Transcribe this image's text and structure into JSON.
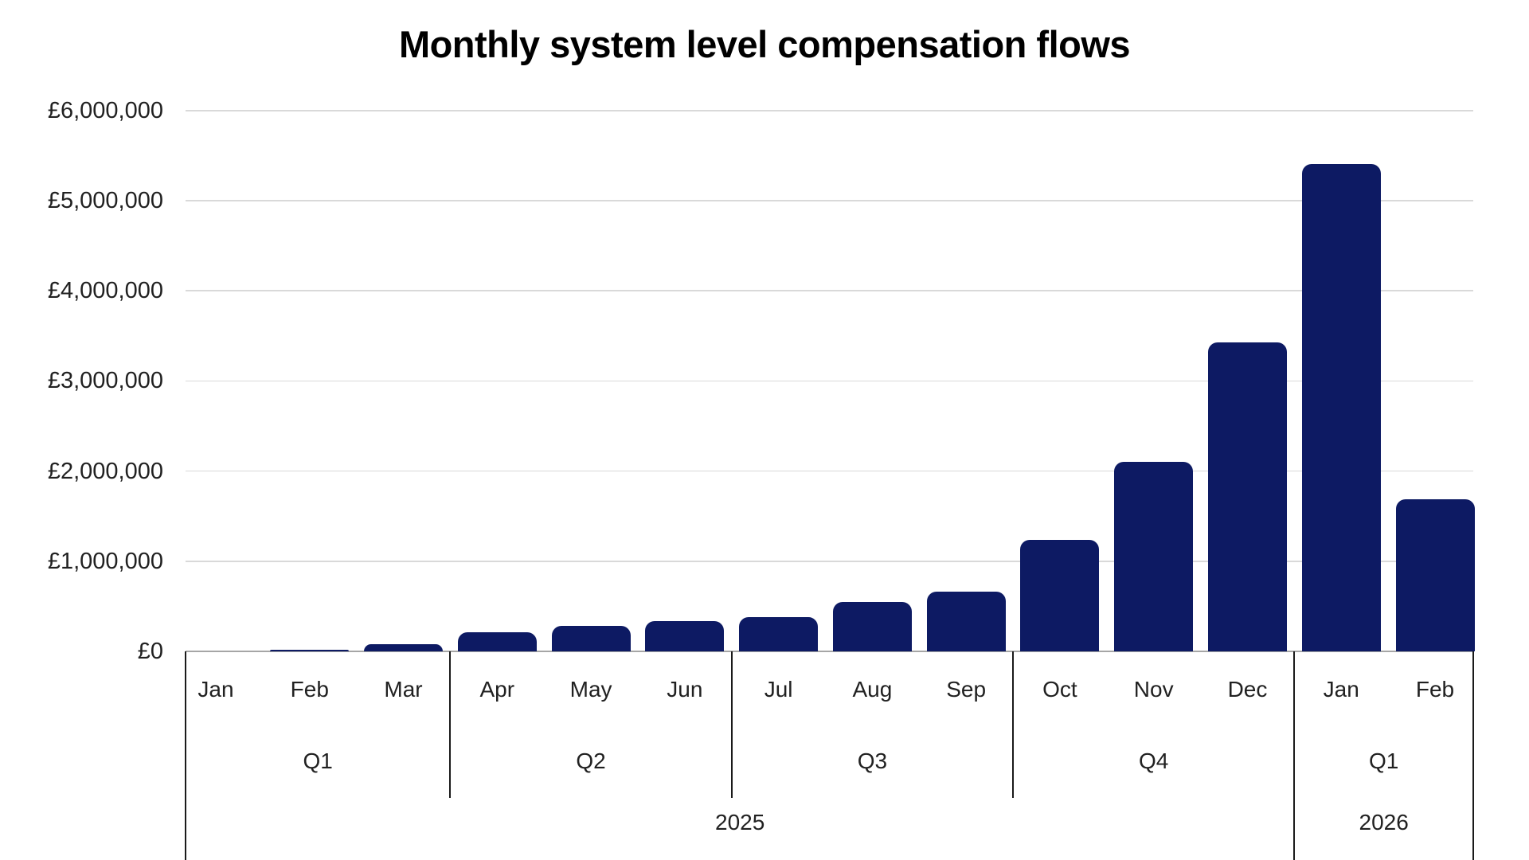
{
  "title": "Monthly system level compensation flows",
  "colors": {
    "bar": "#0d1a63",
    "gridline": "#d9d9d9",
    "axis_line": "#a6a6a6",
    "separator": "#1a1a1a",
    "label_text": "#212121",
    "title_text": "#000000",
    "background": "#ffffff"
  },
  "chart_data": {
    "type": "bar",
    "title": "Monthly system level compensation flows",
    "currency_symbol": "£",
    "categories": [
      "Jan",
      "Feb",
      "Mar",
      "Apr",
      "May",
      "Jun",
      "Jul",
      "Aug",
      "Sep",
      "Oct",
      "Nov",
      "Dec",
      "Jan",
      "Feb"
    ],
    "values": [
      0,
      20000,
      80000,
      210000,
      280000,
      340000,
      380000,
      550000,
      660000,
      1240000,
      2100000,
      3430000,
      5410000,
      1690000
    ],
    "xlabel": "",
    "ylabel": "",
    "ylim": [
      0,
      6000000
    ],
    "ytick_step": 1000000,
    "ytick_labels": [
      "£0",
      "£1,000,000",
      "£2,000,000",
      "£3,000,000",
      "£4,000,000",
      "£5,000,000",
      "£6,000,000"
    ],
    "grid": "horizontal",
    "legend": "none",
    "quarters": [
      {
        "label": "Q1",
        "start": 0,
        "end": 2
      },
      {
        "label": "Q2",
        "start": 3,
        "end": 5
      },
      {
        "label": "Q3",
        "start": 6,
        "end": 8
      },
      {
        "label": "Q4",
        "start": 9,
        "end": 11
      },
      {
        "label": "Q1",
        "start": 12,
        "end": 13
      }
    ],
    "years": [
      {
        "label": "2025",
        "start": 0,
        "end": 11
      },
      {
        "label": "2026",
        "start": 12,
        "end": 13
      }
    ]
  }
}
